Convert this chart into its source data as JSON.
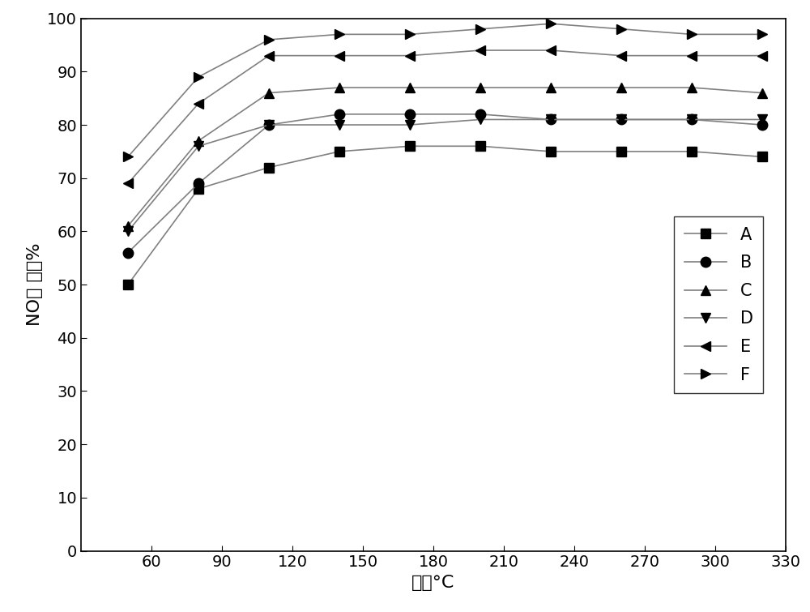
{
  "x": [
    50,
    80,
    110,
    140,
    170,
    200,
    230,
    260,
    290,
    320
  ],
  "series": {
    "A": {
      "y": [
        50,
        68,
        72,
        75,
        76,
        76,
        75,
        75,
        75,
        74
      ],
      "marker": "s",
      "label": "A"
    },
    "B": {
      "y": [
        56,
        69,
        80,
        82,
        82,
        82,
        81,
        81,
        81,
        80
      ],
      "marker": "o",
      "label": "B"
    },
    "C": {
      "y": [
        61,
        77,
        86,
        87,
        87,
        87,
        87,
        87,
        87,
        86
      ],
      "marker": "^",
      "label": "C"
    },
    "D": {
      "y": [
        60,
        76,
        80,
        80,
        80,
        81,
        81,
        81,
        81,
        81
      ],
      "marker": "v",
      "label": "D"
    },
    "E": {
      "y": [
        69,
        84,
        93,
        93,
        93,
        94,
        94,
        93,
        93,
        93
      ],
      "marker": "<",
      "label": "E"
    },
    "F": {
      "y": [
        74,
        89,
        96,
        97,
        97,
        98,
        99,
        98,
        97,
        97
      ],
      "marker": ">",
      "label": "F"
    }
  },
  "line_color": "#808080",
  "marker_color": "#000000",
  "marker_size": 9,
  "line_width": 1.2,
  "xlabel": "温度°C",
  "ylabel": "NO转 化率%",
  "xlim": [
    30,
    330
  ],
  "ylim": [
    0,
    100
  ],
  "xticks": [
    60,
    90,
    120,
    150,
    180,
    210,
    240,
    270,
    300,
    330
  ],
  "yticks": [
    0,
    10,
    20,
    30,
    40,
    50,
    60,
    70,
    80,
    90,
    100
  ],
  "axis_fontsize": 16,
  "tick_fontsize": 14,
  "legend_fontsize": 15
}
